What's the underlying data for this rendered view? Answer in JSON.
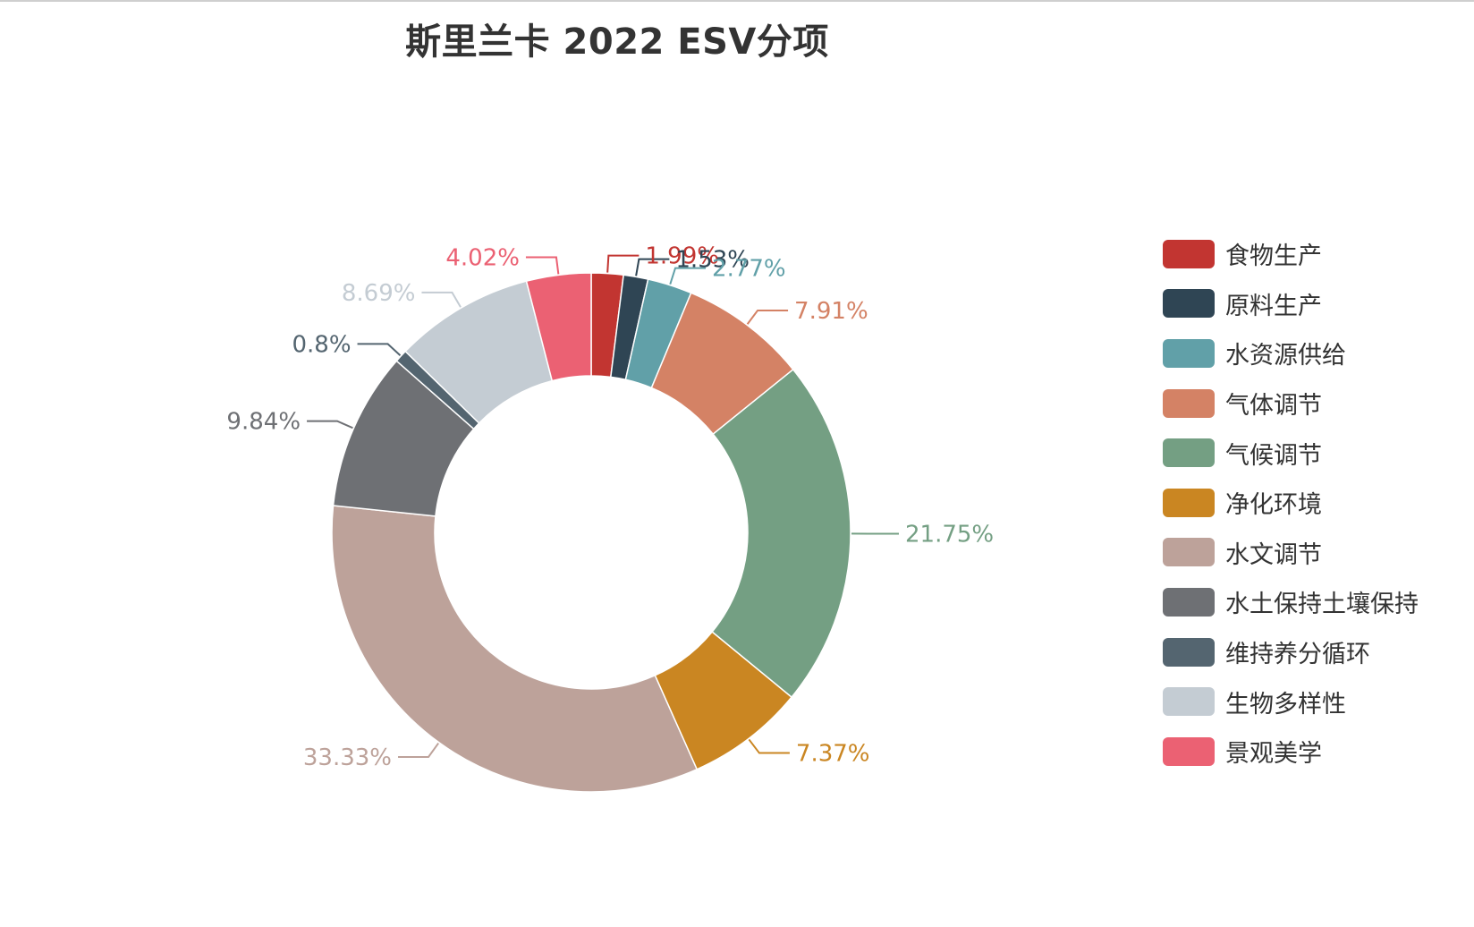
{
  "chart_data": {
    "type": "pie",
    "donut": true,
    "title": "斯里兰卡 2022 ESV分项",
    "legend_position": "right",
    "slices": [
      {
        "name": "食物生产",
        "value": 1.99,
        "label": "1.99%",
        "color": "#c23531"
      },
      {
        "name": "原料生产",
        "value": 1.53,
        "label": "1.53%",
        "color": "#2f4554"
      },
      {
        "name": "水资源供给",
        "value": 2.77,
        "label": "2.77%",
        "color": "#61a0a8"
      },
      {
        "name": "气体调节",
        "value": 7.91,
        "label": "7.91%",
        "color": "#d48265"
      },
      {
        "name": "气候调节",
        "value": 21.75,
        "label": "21.75%",
        "color": "#749f83"
      },
      {
        "name": "净化环境",
        "value": 7.37,
        "label": "7.37%",
        "color": "#ca8622"
      },
      {
        "name": "水文调节",
        "value": 33.33,
        "label": "33.33%",
        "color": "#bda29a"
      },
      {
        "name": "水土保持土壤保持",
        "value": 9.84,
        "label": "9.84%",
        "color": "#6e7074"
      },
      {
        "name": "维持养分循环",
        "value": 0.8,
        "label": "0.8%",
        "color": "#546570"
      },
      {
        "name": "生物多样性",
        "value": 8.69,
        "label": "8.69%",
        "color": "#c4ccd3"
      },
      {
        "name": "景观美学",
        "value": 4.02,
        "label": "4.02%",
        "color": "#eb6173"
      }
    ]
  }
}
